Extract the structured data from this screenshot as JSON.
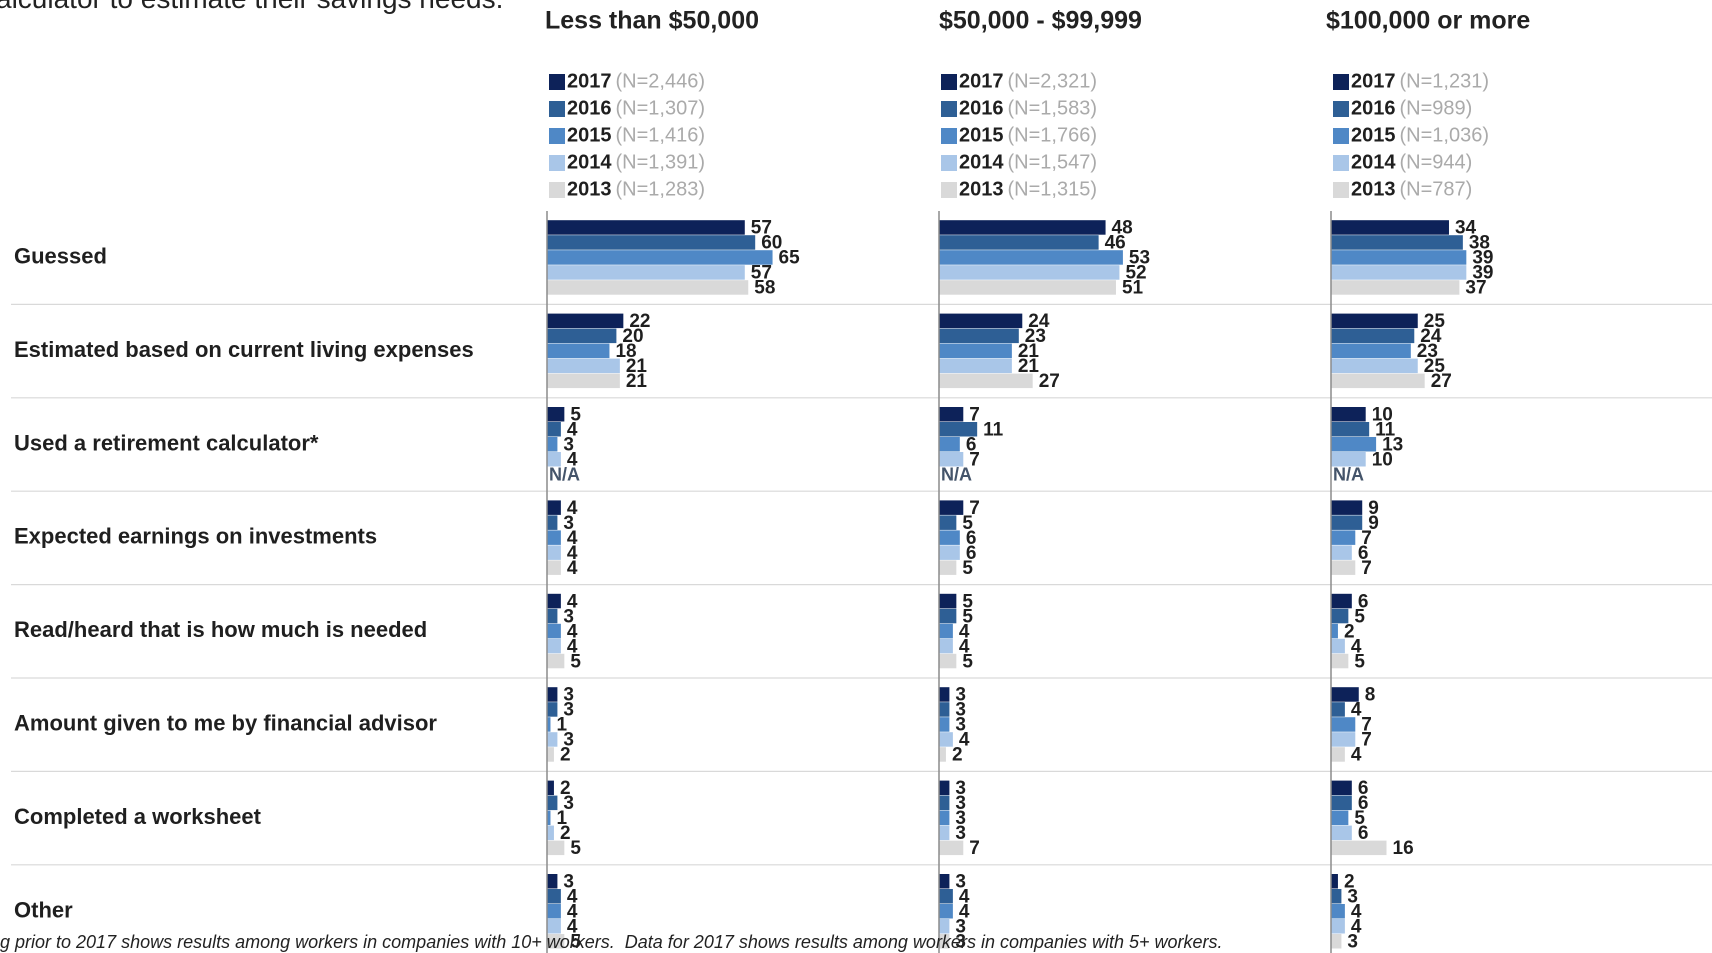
{
  "header": "alculator to estimate their savings needs.",
  "footnote": "g prior to 2017 shows results among workers in companies with 10+ workers.  Data for 2017 shows results among workers in companies with 5+ workers.",
  "chart_data": [
    {
      "type": "bar",
      "orientation": "horizontal",
      "title": "Less than $50,000",
      "xlim": [
        0,
        100
      ],
      "categories": [
        "Guessed",
        "Estimated based on current living expenses",
        "Used a retirement calculator*",
        "Expected earnings on investments",
        "Read/heard that is how much is needed",
        "Amount given to me by financial advisor",
        "Completed a worksheet",
        "Other"
      ],
      "series": [
        {
          "name": "2017",
          "n": "(N=2,446)",
          "color": "#0d2259",
          "values": [
            57,
            22,
            5,
            4,
            4,
            3,
            2,
            3
          ]
        },
        {
          "name": "2016",
          "n": "(N=1,307)",
          "color": "#2e5f95",
          "values": [
            60,
            20,
            4,
            3,
            3,
            3,
            3,
            4
          ]
        },
        {
          "name": "2015",
          "n": "(N=1,416)",
          "color": "#4f88c6",
          "values": [
            65,
            18,
            3,
            4,
            4,
            1,
            1,
            4
          ]
        },
        {
          "name": "2014",
          "n": "(N=1,391)",
          "color": "#a9c6e8",
          "values": [
            57,
            21,
            4,
            4,
            4,
            3,
            2,
            4
          ]
        },
        {
          "name": "2013",
          "n": "(N=1,283)",
          "color": "#d9d9d9",
          "values": [
            58,
            21,
            null,
            4,
            5,
            2,
            5,
            5
          ],
          "value_labels": [
            "58",
            "21",
            "N/A",
            "4",
            "5",
            "2",
            "5",
            "5"
          ]
        }
      ]
    },
    {
      "type": "bar",
      "orientation": "horizontal",
      "title": "$50,000 - $99,999",
      "xlim": [
        0,
        100
      ],
      "series": [
        {
          "name": "2017",
          "n": "(N=2,321)",
          "color": "#0d2259",
          "values": [
            48,
            24,
            7,
            7,
            5,
            3,
            3,
            3
          ]
        },
        {
          "name": "2016",
          "n": "(N=1,583)",
          "color": "#2e5f95",
          "values": [
            46,
            23,
            11,
            5,
            5,
            3,
            3,
            4
          ]
        },
        {
          "name": "2015",
          "n": "(N=1,766)",
          "color": "#4f88c6",
          "values": [
            53,
            21,
            6,
            6,
            4,
            3,
            3,
            4
          ]
        },
        {
          "name": "2014",
          "n": "(N=1,547)",
          "color": "#a9c6e8",
          "values": [
            52,
            21,
            7,
            6,
            4,
            4,
            3,
            3
          ]
        },
        {
          "name": "2013",
          "n": "(N=1,315)",
          "color": "#d9d9d9",
          "values": [
            51,
            27,
            null,
            5,
            5,
            2,
            7,
            3
          ],
          "value_labels": [
            "51",
            "27",
            "N/A",
            "5",
            "5",
            "2",
            "7",
            "3"
          ]
        }
      ]
    },
    {
      "type": "bar",
      "orientation": "horizontal",
      "title": "$100,000 or more",
      "xlim": [
        0,
        100
      ],
      "series": [
        {
          "name": "2017",
          "n": "(N=1,231)",
          "color": "#0d2259",
          "values": [
            34,
            25,
            10,
            9,
            6,
            8,
            6,
            2
          ]
        },
        {
          "name": "2016",
          "n": "(N=989)",
          "color": "#2e5f95",
          "values": [
            38,
            24,
            11,
            9,
            5,
            4,
            6,
            3
          ]
        },
        {
          "name": "2015",
          "n": "(N=1,036)",
          "color": "#4f88c6",
          "values": [
            39,
            23,
            13,
            7,
            2,
            7,
            5,
            4
          ]
        },
        {
          "name": "2014",
          "n": "(N=944)",
          "color": "#a9c6e8",
          "values": [
            39,
            25,
            10,
            6,
            4,
            7,
            6,
            4
          ]
        },
        {
          "name": "2013",
          "n": "(N=787)",
          "color": "#d9d9d9",
          "values": [
            37,
            27,
            null,
            7,
            5,
            4,
            16,
            3
          ],
          "value_labels": [
            "37",
            "27",
            "N/A",
            "7",
            "5",
            "4",
            "16",
            "3"
          ]
        }
      ]
    }
  ]
}
